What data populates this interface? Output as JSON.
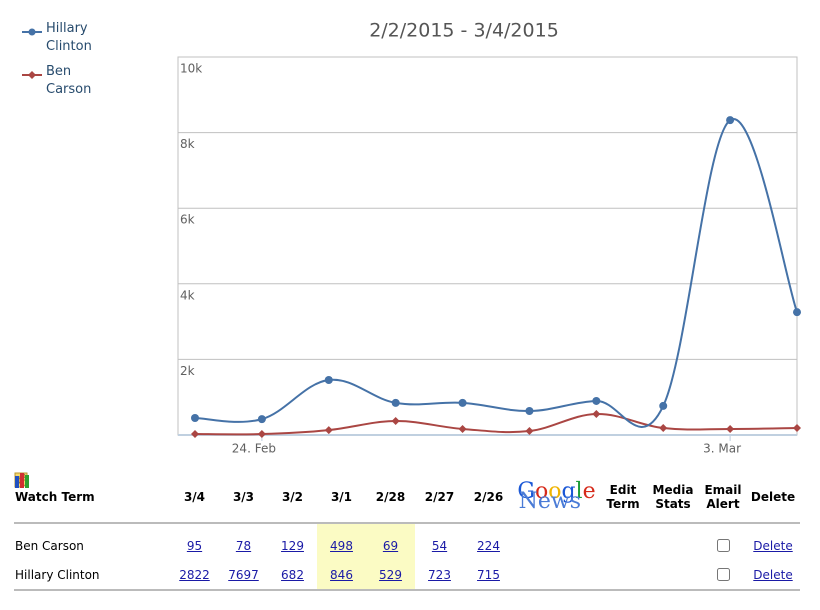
{
  "chart_data": {
    "type": "line",
    "title": "2/2/2015 - 3/4/2015",
    "categories": [
      null,
      "24. Feb",
      null,
      null,
      null,
      null,
      null,
      null,
      "3. Mar",
      null
    ],
    "series": [
      {
        "name": "Hillary Clinton",
        "color": "#4572a7",
        "values": [
          450,
          420,
          1455,
          850,
          850,
          635,
          900,
          770,
          8330,
          3250
        ]
      },
      {
        "name": "Ben Carson",
        "color": "#aa4643",
        "values": [
          25,
          25,
          130,
          370,
          160,
          105,
          555,
          185,
          160,
          185
        ]
      }
    ],
    "ylim": [
      0,
      10000
    ],
    "yticks": [
      {
        "value": 2000,
        "label": "2k"
      },
      {
        "value": 4000,
        "label": "4k"
      },
      {
        "value": 6000,
        "label": "6k"
      },
      {
        "value": 8000,
        "label": "8k"
      },
      {
        "value": 10000,
        "label": "10k"
      }
    ],
    "grid": true,
    "legend": "top-left"
  },
  "table": {
    "header": [
      "Watch Term",
      "3/4",
      "3/3",
      "3/2",
      "3/1",
      "2/28",
      "2/27",
      "2/26"
    ],
    "google": {
      "logo": "Google",
      "sub": "News"
    },
    "extra_headers": [
      "Edit Term",
      "Media Stats",
      "Email Alert",
      "Delete"
    ],
    "rows": [
      {
        "term": "Ben Carson",
        "counts": [
          95,
          78,
          129,
          498,
          69,
          54,
          224
        ],
        "delete": "Delete"
      },
      {
        "term": "Hillary Clinton",
        "counts": [
          2822,
          7697,
          682,
          846,
          529,
          723,
          715
        ],
        "delete": "Delete"
      }
    ]
  }
}
